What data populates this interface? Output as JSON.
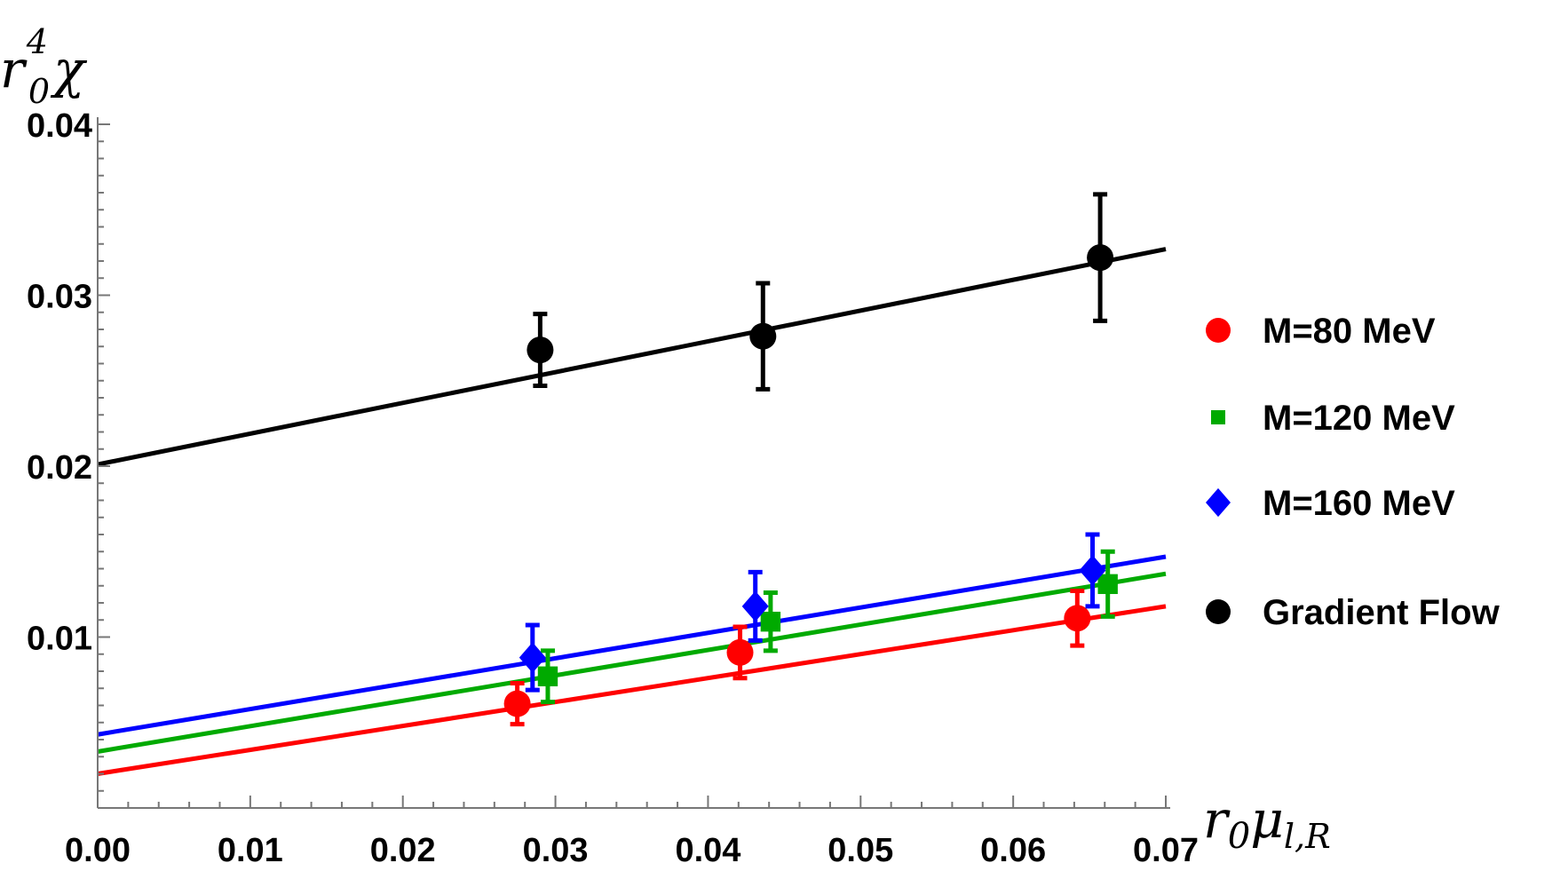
{
  "chart_data": {
    "type": "scatter",
    "title": "",
    "xlabel": {
      "base": "r",
      "sub": "0",
      "sym": "μ",
      "subsub": "l,R"
    },
    "ylabel": {
      "base": "r",
      "sup": "4",
      "sub": "0",
      "sym": "χ"
    },
    "xlim": [
      0,
      0.07
    ],
    "ylim": [
      0,
      0.04
    ],
    "x_ticks": [
      "0.00",
      "0.01",
      "0.02",
      "0.03",
      "0.04",
      "0.05",
      "0.06",
      "0.07"
    ],
    "y_ticks": [
      "0.01",
      "0.02",
      "0.03",
      "0.04"
    ],
    "grid": false,
    "legend_position": "right",
    "series": [
      {
        "name": "M=80 MeV",
        "color": "#ff0000",
        "marker": "circle",
        "points": [
          {
            "x": 0.0275,
            "y": 0.0061,
            "err": 0.0012
          },
          {
            "x": 0.0421,
            "y": 0.0091,
            "err": 0.0015
          },
          {
            "x": 0.0642,
            "y": 0.0111,
            "err": 0.0016
          }
        ],
        "fit": {
          "intercept": 0.002,
          "slope": 0.14
        }
      },
      {
        "name": "M=120 MeV",
        "color": "#00aa00",
        "marker": "square",
        "points": [
          {
            "x": 0.0295,
            "y": 0.0077,
            "err": 0.0015
          },
          {
            "x": 0.0441,
            "y": 0.0109,
            "err": 0.0017
          },
          {
            "x": 0.0662,
            "y": 0.0131,
            "err": 0.0019
          }
        ],
        "fit": {
          "intercept": 0.0033,
          "slope": 0.1486
        }
      },
      {
        "name": "M=160 MeV",
        "color": "#0000ff",
        "marker": "diamond",
        "points": [
          {
            "x": 0.0285,
            "y": 0.0088,
            "err": 0.0019
          },
          {
            "x": 0.0431,
            "y": 0.0118,
            "err": 0.002
          },
          {
            "x": 0.0652,
            "y": 0.0139,
            "err": 0.0021
          }
        ],
        "fit": {
          "intercept": 0.0043,
          "slope": 0.1486
        }
      },
      {
        "name": "Gradient Flow",
        "color": "#000000",
        "marker": "circle",
        "points": [
          {
            "x": 0.029,
            "y": 0.0268,
            "err": 0.0021
          },
          {
            "x": 0.0436,
            "y": 0.0276,
            "err": 0.0031
          },
          {
            "x": 0.0657,
            "y": 0.0322,
            "err": 0.0037
          }
        ],
        "fit": {
          "intercept": 0.0201,
          "slope": 0.18
        }
      }
    ]
  }
}
